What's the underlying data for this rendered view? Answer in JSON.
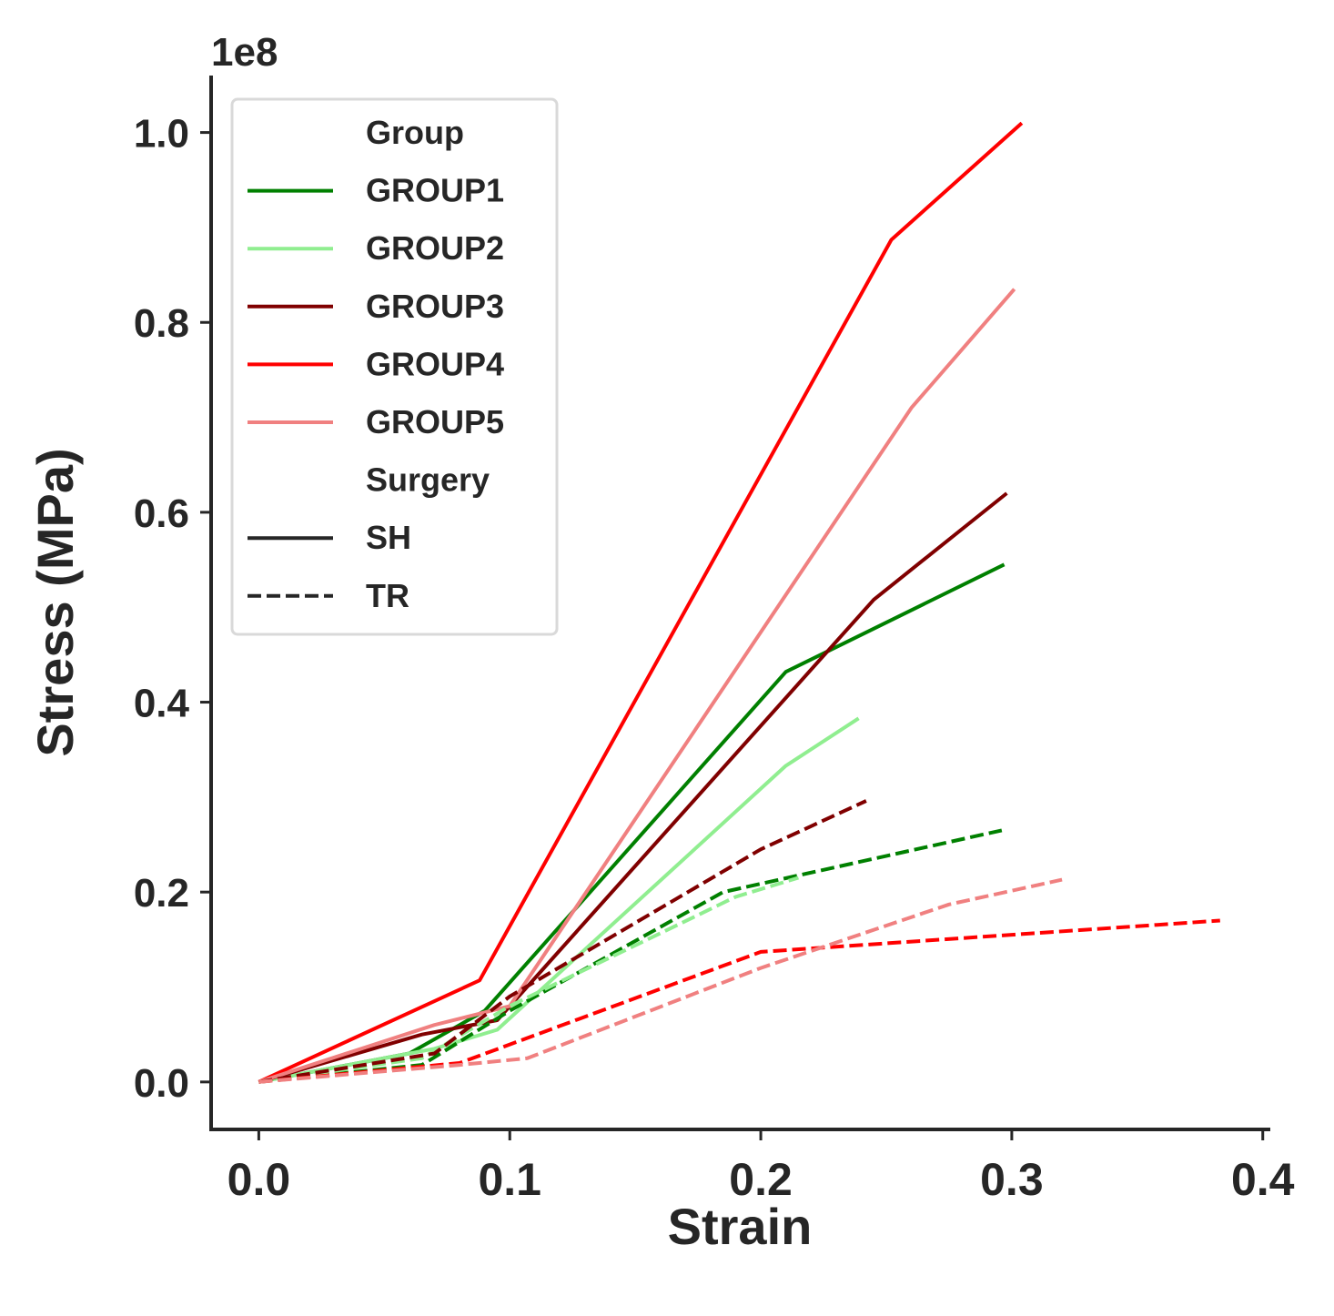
{
  "chart_data": {
    "type": "line",
    "title": "",
    "xlabel": "Strain",
    "ylabel": "Stress (MPa)",
    "y_offset_label": "1e8",
    "xlim": [
      -0.019,
      0.403
    ],
    "ylim": [
      -0.05,
      1.06
    ],
    "x_ticks": [
      0.0,
      0.1,
      0.2,
      0.3,
      0.4
    ],
    "x_tick_labels": [
      "0.0",
      "0.1",
      "0.2",
      "0.3",
      "0.4"
    ],
    "y_ticks": [
      0.0,
      0.2,
      0.4,
      0.6,
      0.8,
      1.0
    ],
    "y_tick_labels": [
      "0.0",
      "0.2",
      "0.4",
      "0.6",
      "0.8",
      "1.0"
    ],
    "grid": false,
    "legend_position": "top-left",
    "legend": {
      "group_title": "Group",
      "surgery_title": "Surgery",
      "groups": [
        {
          "name": "GROUP1",
          "color": "#008000"
        },
        {
          "name": "GROUP2",
          "color": "#90ee90"
        },
        {
          "name": "GROUP3",
          "color": "#800000"
        },
        {
          "name": "GROUP4",
          "color": "#ff0000"
        },
        {
          "name": "GROUP5",
          "color": "#f08080"
        }
      ],
      "styles": [
        {
          "name": "SH",
          "dash": "solid",
          "color": "#262626"
        },
        {
          "name": "TR",
          "dash": "dashed",
          "color": "#262626"
        }
      ]
    },
    "series": [
      {
        "name": "GROUP1",
        "surgery": "SH",
        "color": "#008000",
        "dash": "solid",
        "x": [
          0.0,
          0.06,
          0.09,
          0.21,
          0.297
        ],
        "y": [
          0.0,
          0.03,
          0.075,
          0.432,
          0.545
        ]
      },
      {
        "name": "GROUP2",
        "surgery": "SH",
        "color": "#90ee90",
        "dash": "solid",
        "x": [
          0.0,
          0.07,
          0.095,
          0.21,
          0.239
        ],
        "y": [
          0.0,
          0.035,
          0.055,
          0.333,
          0.383
        ]
      },
      {
        "name": "GROUP3",
        "surgery": "SH",
        "color": "#800000",
        "dash": "solid",
        "x": [
          0.0,
          0.065,
          0.095,
          0.245,
          0.298
        ],
        "y": [
          0.0,
          0.05,
          0.065,
          0.508,
          0.62
        ]
      },
      {
        "name": "GROUP4",
        "surgery": "SH",
        "color": "#ff0000",
        "dash": "solid",
        "x": [
          0.0,
          0.088,
          0.252,
          0.304
        ],
        "y": [
          0.0,
          0.107,
          0.887,
          1.01
        ]
      },
      {
        "name": "GROUP5",
        "surgery": "SH",
        "color": "#f08080",
        "dash": "solid",
        "x": [
          0.0,
          0.07,
          0.1,
          0.26,
          0.301
        ],
        "y": [
          0.0,
          0.06,
          0.08,
          0.71,
          0.835
        ]
      },
      {
        "name": "GROUP1",
        "surgery": "TR",
        "color": "#008000",
        "dash": "dashed",
        "x": [
          0.0,
          0.065,
          0.1,
          0.185,
          0.296
        ],
        "y": [
          0.0,
          0.018,
          0.075,
          0.2,
          0.265
        ]
      },
      {
        "name": "GROUP2",
        "surgery": "TR",
        "color": "#90ee90",
        "dash": "dashed",
        "x": [
          0.0,
          0.065,
          0.1,
          0.19,
          0.215
        ],
        "y": [
          0.0,
          0.025,
          0.08,
          0.195,
          0.215
        ]
      },
      {
        "name": "GROUP3",
        "surgery": "TR",
        "color": "#800000",
        "dash": "dashed",
        "x": [
          0.0,
          0.07,
          0.1,
          0.2,
          0.242
        ],
        "y": [
          0.0,
          0.03,
          0.09,
          0.245,
          0.296
        ]
      },
      {
        "name": "GROUP4",
        "surgery": "TR",
        "color": "#ff0000",
        "dash": "dashed",
        "x": [
          0.0,
          0.08,
          0.2,
          0.3,
          0.383
        ],
        "y": [
          0.0,
          0.02,
          0.137,
          0.155,
          0.17
        ]
      },
      {
        "name": "GROUP5",
        "surgery": "TR",
        "color": "#f08080",
        "dash": "dashed",
        "x": [
          0.0,
          0.08,
          0.107,
          0.2,
          0.275,
          0.32
        ],
        "y": [
          0.0,
          0.018,
          0.025,
          0.12,
          0.187,
          0.213
        ]
      }
    ]
  }
}
